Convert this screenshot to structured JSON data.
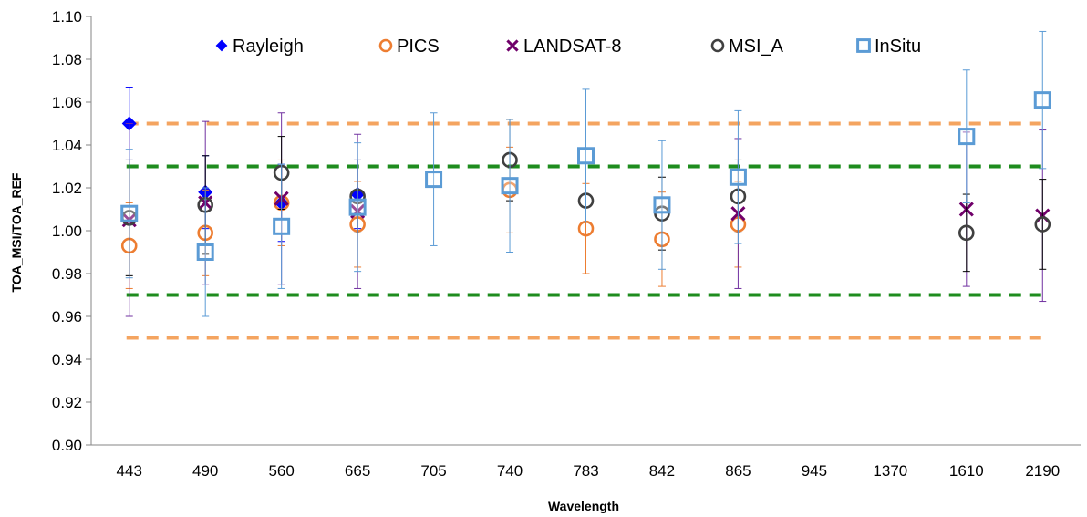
{
  "chart_data": {
    "type": "scatter",
    "title": "",
    "xlabel": "Wavelength",
    "ylabel": "TOA_MSI/TOA_REF",
    "categories": [
      "443",
      "490",
      "560",
      "665",
      "705",
      "740",
      "783",
      "842",
      "865",
      "945",
      "1370",
      "1610",
      "2190"
    ],
    "ylim": [
      0.9,
      1.1
    ],
    "yticks": [
      "0.90",
      "0.92",
      "0.94",
      "0.96",
      "0.98",
      "1.00",
      "1.02",
      "1.04",
      "1.06",
      "1.08",
      "1.10"
    ],
    "grid": false,
    "legend_position": "top",
    "series": [
      {
        "name": "Rayleigh",
        "marker": "diamond",
        "color": "#0000ff",
        "err_color": "#0000ff",
        "values": [
          1.05,
          1.018,
          1.013,
          1.017,
          null,
          null,
          null,
          null,
          null,
          null,
          null,
          null,
          null
        ],
        "errors": [
          0.017,
          0.017,
          0.018,
          0.016,
          null,
          null,
          null,
          null,
          null,
          null,
          null,
          null,
          null
        ]
      },
      {
        "name": "PICS",
        "marker": "circle",
        "color": "#ed7d31",
        "err_color": "#ed7d31",
        "values": [
          0.993,
          0.999,
          1.013,
          1.003,
          null,
          1.019,
          1.001,
          0.996,
          1.003,
          null,
          null,
          null,
          null
        ],
        "errors": [
          0.02,
          0.02,
          0.02,
          0.02,
          null,
          0.02,
          0.021,
          0.022,
          0.02,
          null,
          null,
          null,
          null
        ]
      },
      {
        "name": "LANDSAT-8",
        "marker": "cross",
        "color": "#70006a",
        "err_color": "#7030a0",
        "values": [
          1.005,
          1.013,
          1.015,
          1.009,
          null,
          null,
          null,
          null,
          1.008,
          null,
          null,
          1.01,
          1.007
        ],
        "errors": [
          0.045,
          0.038,
          0.04,
          0.036,
          null,
          null,
          null,
          null,
          0.035,
          null,
          null,
          0.036,
          0.04
        ]
      },
      {
        "name": "MSI_A",
        "marker": "circle",
        "color": "#404040",
        "err_color": "#000000",
        "values": [
          1.006,
          1.012,
          1.027,
          1.016,
          null,
          1.033,
          1.014,
          1.008,
          1.016,
          null,
          null,
          0.999,
          1.003
        ],
        "errors": [
          0.027,
          0.023,
          0.017,
          0.017,
          null,
          0.019,
          null,
          0.017,
          0.017,
          null,
          null,
          0.018,
          0.021
        ]
      },
      {
        "name": "InSitu",
        "marker": "square",
        "color": "#5b9bd5",
        "err_color": "#5b9bd5",
        "values": [
          1.008,
          0.99,
          1.002,
          1.011,
          1.024,
          1.021,
          1.035,
          1.012,
          1.025,
          null,
          null,
          1.044,
          1.061
        ],
        "errors": [
          0.03,
          0.03,
          0.029,
          0.03,
          0.031,
          0.031,
          0.031,
          0.03,
          0.031,
          null,
          null,
          0.031,
          0.032
        ]
      }
    ],
    "reference_lines": [
      {
        "y": 1.05,
        "color": "#f4a460",
        "style": "dashed"
      },
      {
        "y": 0.95,
        "color": "#f4a460",
        "style": "dashed"
      },
      {
        "y": 1.03,
        "color": "#1e8c1e",
        "style": "dashed"
      },
      {
        "y": 0.97,
        "color": "#1e8c1e",
        "style": "dashed"
      }
    ]
  }
}
